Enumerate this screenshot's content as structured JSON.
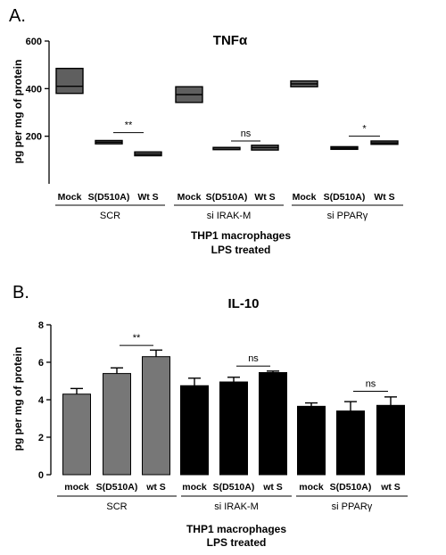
{
  "chart_data": [
    {
      "panel_label": "A.",
      "type": "box",
      "title": "TNFα",
      "ylabel": "pg per mg of protein",
      "ylim": [
        0,
        600
      ],
      "yticks": [
        200,
        400,
        600
      ],
      "color": "#5f5f5f",
      "categories": [
        "Mock",
        "S(D510A)",
        "Wt S",
        "Mock",
        "S(D510A)",
        "Wt S",
        "Mock",
        "S(D510A)",
        "Wt S"
      ],
      "groups": [
        "SCR",
        "si IRAK-M",
        "si PPARγ"
      ],
      "boxes": [
        {
          "low": 380,
          "median": 410,
          "high": 485
        },
        {
          "low": 168,
          "median": 175,
          "high": 182
        },
        {
          "low": 118,
          "median": 125,
          "high": 134
        },
        {
          "low": 342,
          "median": 375,
          "high": 408
        },
        {
          "low": 148,
          "median": 151,
          "high": 153
        },
        {
          "low": 142,
          "median": 152,
          "high": 162
        },
        {
          "low": 408,
          "median": 420,
          "high": 432
        },
        {
          "low": 145,
          "median": 150,
          "high": 156
        },
        {
          "low": 166,
          "median": 172,
          "high": 180
        }
      ],
      "annotations": [
        {
          "text": "**",
          "from": 1,
          "to": 2,
          "y": 215
        },
        {
          "text": "ns",
          "from": 4,
          "to": 5,
          "y": 180
        },
        {
          "text": "*",
          "from": 7,
          "to": 8,
          "y": 200
        }
      ],
      "xlabel_lines": [
        "THP1 macrophages",
        "LPS treated"
      ]
    },
    {
      "panel_label": "B.",
      "type": "bar",
      "title": "IL-10",
      "ylabel": "pg per mg of protein",
      "ylim": [
        0,
        8
      ],
      "yticks": [
        0,
        2,
        4,
        6,
        8
      ],
      "categories": [
        "mock",
        "S(D510A)",
        "wt S",
        "mock",
        "S(D510A)",
        "wt S",
        "mock",
        "S(D510A)",
        "wt S"
      ],
      "groups": [
        "SCR",
        "si IRAK-M",
        "si PPARγ"
      ],
      "values": [
        4.3,
        5.4,
        6.3,
        4.75,
        4.95,
        5.45,
        3.65,
        3.4,
        3.7
      ],
      "errors": [
        0.3,
        0.3,
        0.35,
        0.4,
        0.25,
        0.08,
        0.18,
        0.5,
        0.45
      ],
      "colors": [
        "#777777",
        "#777777",
        "#777777",
        "#000000",
        "#000000",
        "#000000",
        "#000000",
        "#000000",
        "#000000"
      ],
      "annotations": [
        {
          "text": "**",
          "from": 1,
          "to": 2,
          "y": 6.9
        },
        {
          "text": "ns",
          "from": 4,
          "to": 5,
          "y": 5.8
        },
        {
          "text": "ns",
          "from": 7,
          "to": 8,
          "y": 4.45
        }
      ],
      "xlabel_lines": [
        "THP1 macrophages",
        "LPS treated"
      ]
    }
  ]
}
